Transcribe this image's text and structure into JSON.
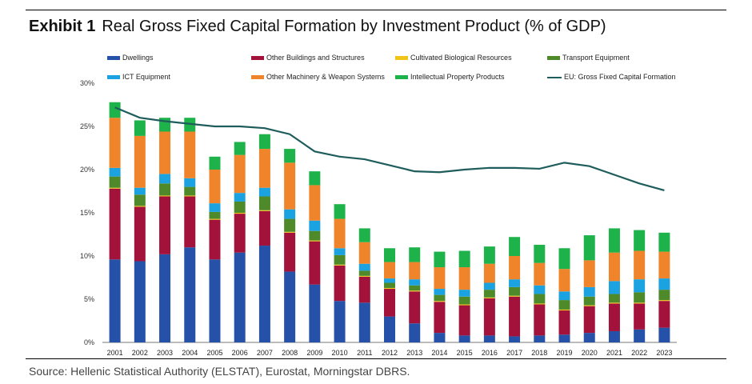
{
  "header": {
    "label": "Exhibit 1",
    "title": "Real Gross Fixed Capital Formation by Investment Product (% of GDP)"
  },
  "footer": {
    "source": "Source: Hellenic Statistical Authority (ELSTAT), Eurostat, Morningstar DBRS."
  },
  "chart_data": {
    "type": "bar",
    "stacked": true,
    "title": "Real Gross Fixed Capital Formation by Investment Product (% of GDP)",
    "ylim": [
      0,
      30
    ],
    "yticks": [
      "0%",
      "5%",
      "10%",
      "15%",
      "20%",
      "25%",
      "30%"
    ],
    "grid": false,
    "legend_position": "top",
    "categories": [
      "2001",
      "2002",
      "2003",
      "2004",
      "2005",
      "2006",
      "2007",
      "2008",
      "2009",
      "2010",
      "2011",
      "2012",
      "2013",
      "2014",
      "2015",
      "2016",
      "2017",
      "2018",
      "2019",
      "2020",
      "2021",
      "2022",
      "2023"
    ],
    "series": [
      {
        "name": "Dwellings",
        "color": "#2651a8",
        "values": [
          9.6,
          9.4,
          10.2,
          11.0,
          9.6,
          10.4,
          11.2,
          8.2,
          6.7,
          4.8,
          4.6,
          3.0,
          2.2,
          1.1,
          0.8,
          0.8,
          0.7,
          0.8,
          0.9,
          1.1,
          1.3,
          1.5,
          1.7
        ]
      },
      {
        "name": "Other Buildings and Structures",
        "color": "#a3123a",
        "values": [
          8.2,
          6.3,
          6.7,
          5.9,
          4.6,
          4.5,
          4.0,
          4.5,
          5.0,
          4.1,
          3.0,
          3.2,
          3.7,
          3.6,
          3.5,
          4.3,
          4.6,
          3.6,
          2.8,
          3.1,
          3.2,
          3.0,
          3.1
        ]
      },
      {
        "name": "Cultivated Biological Resources",
        "color": "#f0c419",
        "values": [
          0.1,
          0.1,
          0.1,
          0.1,
          0.1,
          0.1,
          0.1,
          0.1,
          0.1,
          0.1,
          0.1,
          0.1,
          0.1,
          0.1,
          0.1,
          0.1,
          0.1,
          0.1,
          0.1,
          0.1,
          0.1,
          0.1,
          0.1
        ]
      },
      {
        "name": "Transport Equipment",
        "color": "#4f8a2a",
        "values": [
          1.3,
          1.3,
          1.4,
          1.0,
          0.8,
          1.3,
          1.6,
          1.5,
          1.1,
          1.1,
          0.6,
          0.6,
          0.6,
          0.7,
          0.9,
          0.9,
          1.0,
          1.1,
          1.1,
          1.0,
          1.0,
          1.2,
          1.2
        ]
      },
      {
        "name": "ICT Equipment",
        "color": "#1aa3e0",
        "values": [
          1.0,
          0.8,
          1.1,
          1.0,
          1.0,
          1.0,
          1.0,
          1.1,
          1.2,
          0.8,
          0.8,
          0.5,
          0.7,
          0.7,
          0.8,
          0.8,
          0.9,
          1.0,
          1.0,
          1.1,
          1.5,
          1.5,
          1.3
        ]
      },
      {
        "name": "Other Machinery & Weapon Systems",
        "color": "#f0842a",
        "values": [
          5.8,
          6.0,
          4.9,
          5.4,
          3.9,
          4.4,
          4.5,
          5.4,
          4.1,
          3.4,
          2.5,
          1.9,
          2.0,
          2.5,
          2.6,
          2.2,
          2.7,
          2.6,
          2.6,
          3.1,
          3.3,
          3.3,
          3.1
        ]
      },
      {
        "name": "Intellectual Property Products",
        "color": "#1db34a",
        "values": [
          1.8,
          1.8,
          1.6,
          1.6,
          1.5,
          1.5,
          1.7,
          1.6,
          1.6,
          1.7,
          1.6,
          1.6,
          1.7,
          1.8,
          1.9,
          2.0,
          2.2,
          2.1,
          2.4,
          2.9,
          2.8,
          2.4,
          2.2
        ]
      }
    ],
    "line": {
      "name": "EU: Gross Fixed Capital Formation",
      "color": "#1f5c5c",
      "values": [
        27.2,
        26.0,
        25.6,
        25.3,
        25.0,
        25.0,
        24.8,
        24.1,
        22.1,
        21.5,
        21.2,
        20.5,
        19.8,
        19.7,
        20.0,
        20.2,
        20.2,
        20.1,
        20.8,
        20.4,
        19.4,
        18.4,
        17.6
      ]
    }
  }
}
